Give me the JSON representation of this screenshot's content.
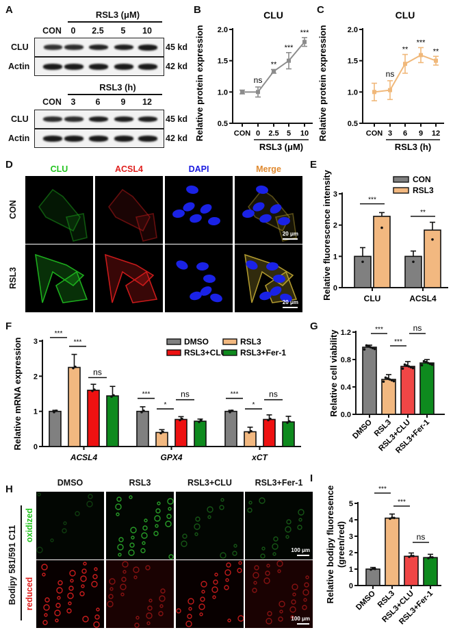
{
  "panel_labels": [
    "A",
    "B",
    "C",
    "D",
    "E",
    "F",
    "G",
    "H",
    "I"
  ],
  "panelA": {
    "top": {
      "treatment_title": "RSL3 (μM)",
      "lanes": [
        "CON",
        "0",
        "2.5",
        "5",
        "10"
      ],
      "rows": [
        {
          "name": "CLU",
          "size": "45 kd",
          "intensity": [
            0.75,
            0.8,
            0.9,
            0.95,
            1.0
          ]
        },
        {
          "name": "Actin",
          "size": "42 kd",
          "intensity": [
            1.0,
            1.0,
            1.0,
            1.0,
            1.0
          ]
        }
      ]
    },
    "bottom": {
      "treatment_title": "RSL3 (h)",
      "lanes": [
        "CON",
        "3",
        "6",
        "9",
        "12"
      ],
      "rows": [
        {
          "name": "CLU",
          "size": "45 kd",
          "intensity": [
            0.8,
            0.8,
            0.95,
            0.95,
            0.95
          ]
        },
        {
          "name": "Actin",
          "size": "42 kd",
          "intensity": [
            1.0,
            1.0,
            1.0,
            1.0,
            1.0
          ]
        }
      ]
    }
  },
  "panelD": {
    "columns": [
      "CLU",
      "ACSL4",
      "DAPI",
      "Merge"
    ],
    "column_colors": [
      "#22c41e",
      "#e0201e",
      "#1a1ae0",
      "#e08a30"
    ],
    "rows": [
      "CON",
      "RSL3"
    ],
    "scale_bar": "20 μm"
  },
  "panelH": {
    "columns": [
      "DMSO",
      "RSL3",
      "RSL3+CLU",
      "RSL3+Fer-1"
    ],
    "rows": [
      "oxidized",
      "reduced"
    ],
    "row_colors": [
      "#22c41e",
      "#e0201e"
    ],
    "side_label": "Bodipy 581/591 C11",
    "scale_bar": "100 μm"
  },
  "chart_data": [
    {
      "panel": "B",
      "type": "line",
      "title": "CLU",
      "xlabel": "RSL3 (μM)",
      "ylabel": "Relative protein expression",
      "categories": [
        "CON",
        "0",
        "2.5",
        "5",
        "10"
      ],
      "values": [
        1.0,
        1.0,
        1.33,
        1.5,
        1.8
      ],
      "errors": [
        0.03,
        0.08,
        0.03,
        0.13,
        0.07
      ],
      "significance": [
        "",
        "ns",
        "**",
        "***",
        "***"
      ],
      "ylim": [
        0.5,
        2.0
      ],
      "yticks": [
        "0.5",
        "1.0",
        "1.5",
        "2.0"
      ],
      "color": "#8c8c8c"
    },
    {
      "panel": "C",
      "type": "line",
      "title": "CLU",
      "xlabel": "RSL3 (h)",
      "ylabel": "Relative protein expression",
      "categories": [
        "CON",
        "3",
        "6",
        "9",
        "12"
      ],
      "values": [
        1.0,
        1.03,
        1.45,
        1.59,
        1.5
      ],
      "errors": [
        0.14,
        0.15,
        0.15,
        0.12,
        0.07
      ],
      "significance": [
        "",
        "ns",
        "**",
        "***",
        "**"
      ],
      "ylim": [
        0.5,
        2.0
      ],
      "yticks": [
        "0.5",
        "1.0",
        "1.5",
        "2.0"
      ],
      "color": "#f0b87a"
    },
    {
      "panel": "E",
      "type": "bar",
      "ylabel": "Relative fluorescence intensity",
      "categories": [
        "CLU",
        "ACSL4"
      ],
      "series": [
        {
          "name": "CON",
          "values": [
            1.0,
            1.0
          ],
          "errors": [
            0.28,
            0.17
          ],
          "color": "#808080"
        },
        {
          "name": "RSL3",
          "values": [
            2.28,
            1.84
          ],
          "errors": [
            0.12,
            0.25
          ],
          "color": "#f2b880"
        }
      ],
      "significance": [
        "***",
        "**"
      ],
      "ylim": [
        0,
        3
      ],
      "yticks": [
        "0",
        "1",
        "2",
        "3"
      ],
      "legend_position": "upper right"
    },
    {
      "panel": "F",
      "type": "bar",
      "ylabel": "Relative mRNA expression",
      "categories": [
        "ACSL4",
        "GPX4",
        "xCT"
      ],
      "series": [
        {
          "name": "DMSO",
          "values": [
            1.0,
            1.0,
            1.0
          ],
          "errors": [
            0.03,
            0.13,
            0.03
          ],
          "color": "#808080"
        },
        {
          "name": "RSL3",
          "values": [
            2.25,
            0.4,
            0.42
          ],
          "errors": [
            0.37,
            0.08,
            0.13
          ],
          "color": "#f2b880"
        },
        {
          "name": "RSL3+CLU",
          "values": [
            1.6,
            0.77,
            0.77
          ],
          "errors": [
            0.17,
            0.08,
            0.13
          ],
          "color": "#ee1111"
        },
        {
          "name": "RSL3+Fer-1",
          "values": [
            1.44,
            0.72,
            0.7
          ],
          "errors": [
            0.27,
            0.06,
            0.16
          ],
          "color": "#0e8a1e"
        }
      ],
      "significance_groups": [
        [
          "***",
          "***",
          "ns"
        ],
        [
          "***",
          "*",
          "ns"
        ],
        [
          "***",
          "*",
          "ns"
        ]
      ],
      "ylim": [
        0,
        3
      ],
      "yticks": [
        "0",
        "1",
        "2",
        "3"
      ],
      "legend_position": "upper right"
    },
    {
      "panel": "G",
      "type": "bar",
      "ylabel": "Relative cell viability",
      "categories": [
        "DMSO",
        "RSL3",
        "RSL3+CLU",
        "RSL3+Fer-1"
      ],
      "values": [
        0.98,
        0.51,
        0.7,
        0.75
      ],
      "errors": [
        0.03,
        0.07,
        0.07,
        0.05
      ],
      "colors": [
        "#808080",
        "#f2b880",
        "#f04646",
        "#0e8a1e"
      ],
      "significance": [
        {
          "pair": [
            "DMSO",
            "RSL3"
          ],
          "label": "***"
        },
        {
          "pair": [
            "RSL3",
            "RSL3+CLU"
          ],
          "label": "***"
        },
        {
          "pair": [
            "RSL3+CLU",
            "RSL3+Fer-1"
          ],
          "label": "ns"
        }
      ],
      "ylim": [
        0.0,
        1.2
      ],
      "yticks": [
        "0.0",
        "0.4",
        "0.8",
        "1.2"
      ]
    },
    {
      "panel": "I",
      "type": "bar",
      "ylabel": "Relative bodipy fluoresence (green/red)",
      "categories": [
        "DMSO",
        "RSL3",
        "RSL3+CLU",
        "RSL3+Fer-1"
      ],
      "values": [
        1.0,
        4.1,
        1.78,
        1.7
      ],
      "errors": [
        0.1,
        0.25,
        0.2,
        0.2
      ],
      "colors": [
        "#808080",
        "#f2b880",
        "#f04646",
        "#0e8a1e"
      ],
      "significance": [
        {
          "pair": [
            "DMSO",
            "RSL3"
          ],
          "label": "***"
        },
        {
          "pair": [
            "RSL3",
            "RSL3+CLU"
          ],
          "label": "***"
        },
        {
          "pair": [
            "RSL3+CLU",
            "RSL3+Fer-1"
          ],
          "label": "ns"
        }
      ],
      "ylim": [
        0,
        5
      ],
      "yticks": [
        "0",
        "1",
        "2",
        "3",
        "4",
        "5"
      ]
    }
  ]
}
